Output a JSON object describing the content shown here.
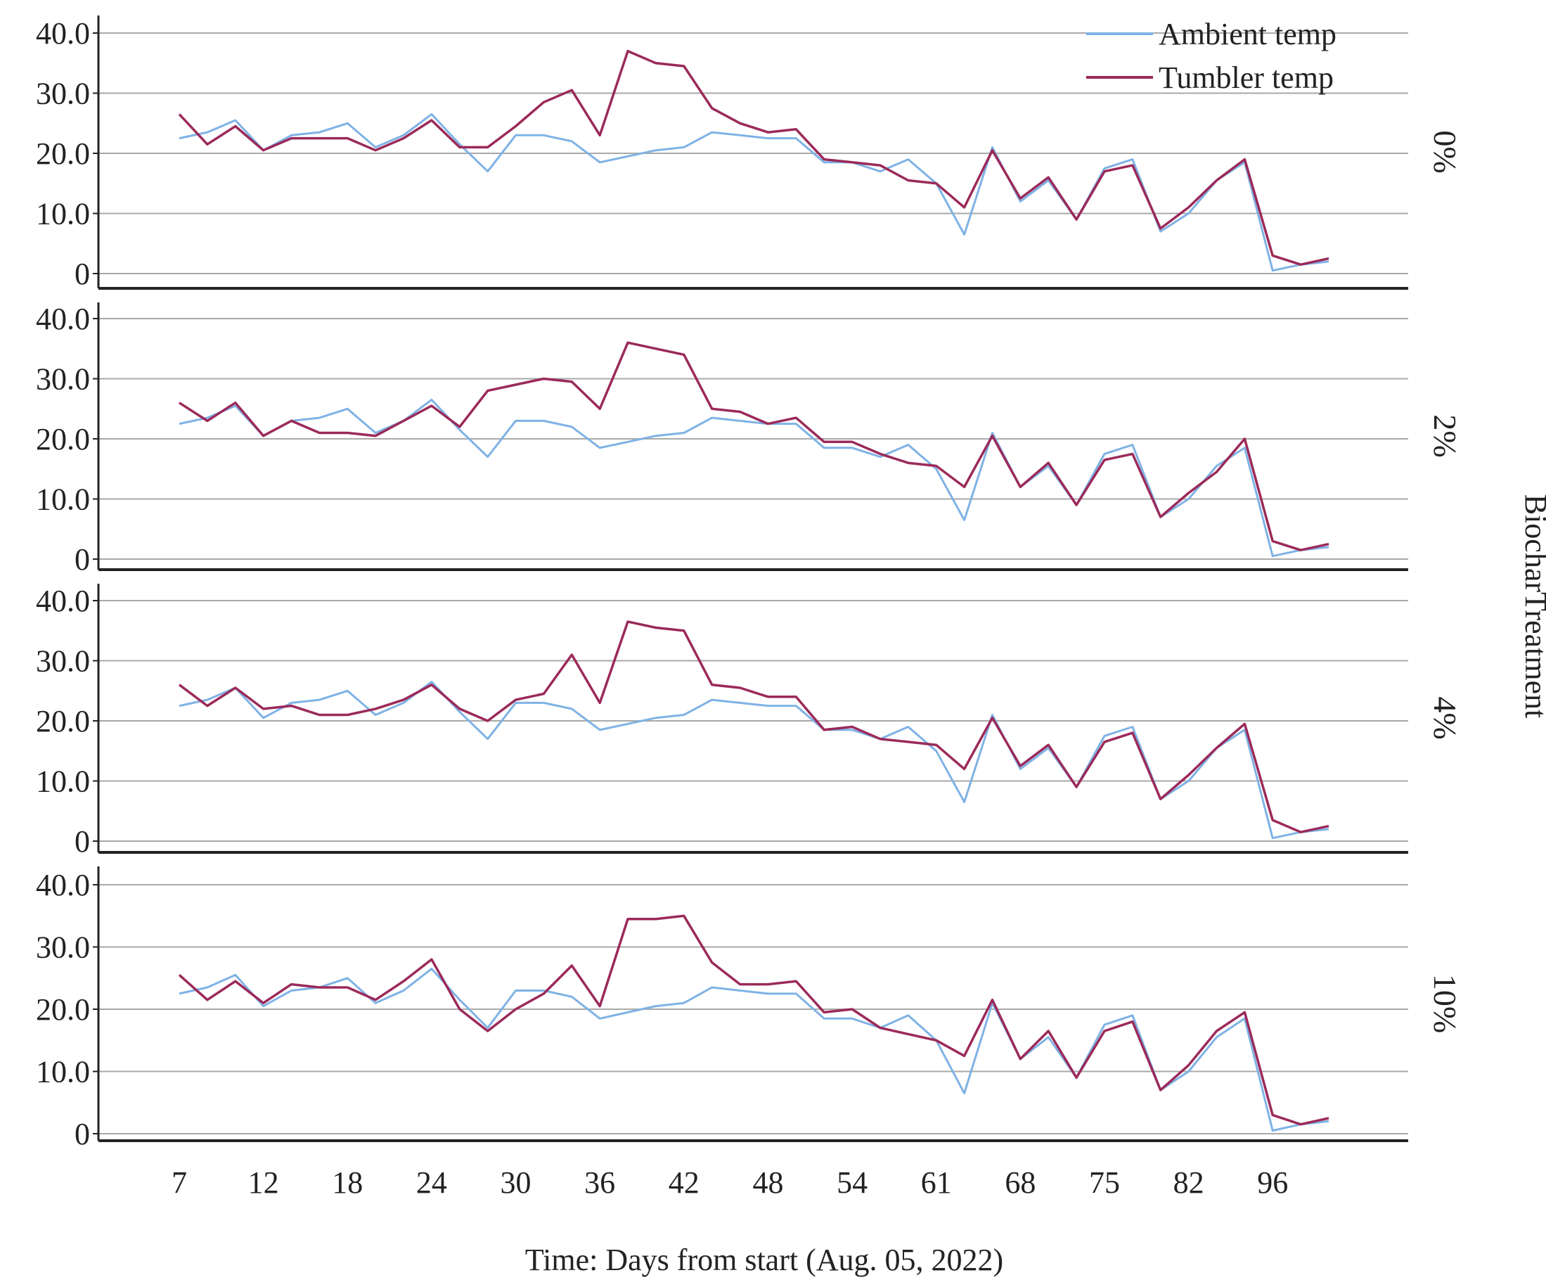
{
  "colors": {
    "ambient": "#7fb2e5",
    "tumbler": "#9b2a5a",
    "grid": "#a9a9a9",
    "axis": "#222222",
    "text": "#222222"
  },
  "chart_data": {
    "type": "line",
    "title": "",
    "xlabel": "Time: Days from start (Aug. 05, 2022)",
    "panel_axis_label": "BiocharTreatment",
    "ylim": [
      0,
      40
    ],
    "y_ticks": [
      0,
      10,
      20,
      30,
      40
    ],
    "y_tick_labels": [
      "0",
      "10.0",
      "20.0",
      "30.0",
      "40.0"
    ],
    "x_tick_labels": [
      "7",
      "12",
      "18",
      "24",
      "30",
      "36",
      "42",
      "48",
      "54",
      "61",
      "68",
      "75",
      "82",
      "96"
    ],
    "x_tick_indices": [
      0,
      3,
      6,
      9,
      12,
      15,
      18,
      21,
      24,
      27,
      30,
      33,
      36,
      39
    ],
    "n_points": 42,
    "legend": {
      "position": "top-right",
      "entries": [
        "Ambient temp",
        "Tumbler temp"
      ]
    },
    "ambient_series": [
      22.5,
      23.5,
      25.5,
      20.5,
      23,
      23.5,
      25,
      21,
      23,
      26.5,
      21.5,
      17,
      23,
      23,
      22,
      18.5,
      19.5,
      20.5,
      21,
      23.5,
      23,
      22.5,
      22.5,
      18.5,
      18.5,
      17,
      19,
      15,
      6.5,
      21,
      12,
      15.5,
      9,
      17.5,
      19,
      7,
      10,
      15.5,
      18.5,
      0.5,
      1.5,
      2
    ],
    "panels": [
      {
        "label": "0%",
        "series": [
          {
            "name": "Ambient temp",
            "values": [
              22.5,
              23.5,
              25.5,
              20.5,
              23,
              23.5,
              25,
              21,
              23,
              26.5,
              21.5,
              17,
              23,
              23,
              22,
              18.5,
              19.5,
              20.5,
              21,
              23.5,
              23,
              22.5,
              22.5,
              18.5,
              18.5,
              17,
              19,
              15,
              6.5,
              21,
              12,
              15.5,
              9,
              17.5,
              19,
              7,
              10,
              15.5,
              18.5,
              0.5,
              1.5,
              2
            ]
          },
          {
            "name": "Tumbler temp",
            "values": [
              26.5,
              21.5,
              24.5,
              20.5,
              22.5,
              22.5,
              22.5,
              20.5,
              22.5,
              25.5,
              21,
              21,
              24.5,
              28.5,
              30.5,
              23,
              37,
              35,
              34.5,
              27.5,
              25,
              23.5,
              24,
              19,
              18.5,
              18,
              15.5,
              15,
              11,
              20.5,
              12.5,
              16,
              9,
              17,
              18,
              7.5,
              11,
              15.5,
              19,
              3,
              1.5,
              2.5
            ]
          }
        ]
      },
      {
        "label": "2%",
        "series": [
          {
            "name": "Ambient temp",
            "values": [
              22.5,
              23.5,
              25.5,
              20.5,
              23,
              23.5,
              25,
              21,
              23,
              26.5,
              21.5,
              17,
              23,
              23,
              22,
              18.5,
              19.5,
              20.5,
              21,
              23.5,
              23,
              22.5,
              22.5,
              18.5,
              18.5,
              17,
              19,
              15,
              6.5,
              21,
              12,
              15.5,
              9,
              17.5,
              19,
              7,
              10,
              15.5,
              18.5,
              0.5,
              1.5,
              2
            ]
          },
          {
            "name": "Tumbler temp",
            "values": [
              26,
              23,
              26,
              20.5,
              23,
              21,
              21,
              20.5,
              23,
              25.5,
              22,
              28,
              29,
              30,
              29.5,
              25,
              36,
              35,
              34,
              25,
              24.5,
              22.5,
              23.5,
              19.5,
              19.5,
              17.5,
              16,
              15.5,
              12,
              20.5,
              12,
              16,
              9,
              16.5,
              17.5,
              7,
              11,
              14.5,
              20,
              3,
              1.5,
              2.5
            ]
          }
        ]
      },
      {
        "label": "4%",
        "series": [
          {
            "name": "Ambient temp",
            "values": [
              22.5,
              23.5,
              25.5,
              20.5,
              23,
              23.5,
              25,
              21,
              23,
              26.5,
              21.5,
              17,
              23,
              23,
              22,
              18.5,
              19.5,
              20.5,
              21,
              23.5,
              23,
              22.5,
              22.5,
              18.5,
              18.5,
              17,
              19,
              15,
              6.5,
              21,
              12,
              15.5,
              9,
              17.5,
              19,
              7,
              10,
              15.5,
              18.5,
              0.5,
              1.5,
              2
            ]
          },
          {
            "name": "Tumbler temp",
            "values": [
              26,
              22.5,
              25.5,
              22,
              22.5,
              21,
              21,
              22,
              23.5,
              26,
              22,
              20,
              23.5,
              24.5,
              31,
              23,
              36.5,
              35.5,
              35,
              26,
              25.5,
              24,
              24,
              18.5,
              19,
              17,
              16.5,
              16,
              12,
              20.5,
              12.5,
              16,
              9,
              16.5,
              18,
              7,
              11,
              15.5,
              19.5,
              3.5,
              1.5,
              2.5
            ]
          }
        ]
      },
      {
        "label": "10%",
        "series": [
          {
            "name": "Ambient temp",
            "values": [
              22.5,
              23.5,
              25.5,
              20.5,
              23,
              23.5,
              25,
              21,
              23,
              26.5,
              21.5,
              17,
              23,
              23,
              22,
              18.5,
              19.5,
              20.5,
              21,
              23.5,
              23,
              22.5,
              22.5,
              18.5,
              18.5,
              17,
              19,
              15,
              6.5,
              21,
              12,
              15.5,
              9,
              17.5,
              19,
              7,
              10,
              15.5,
              18.5,
              0.5,
              1.5,
              2
            ]
          },
          {
            "name": "Tumbler temp",
            "values": [
              25.5,
              21.5,
              24.5,
              21,
              24,
              23.5,
              23.5,
              21.5,
              24.5,
              28,
              20,
              16.5,
              20,
              22.5,
              27,
              20.5,
              34.5,
              34.5,
              35,
              27.5,
              24,
              24,
              24.5,
              19.5,
              20,
              17,
              16,
              15,
              12.5,
              21.5,
              12,
              16.5,
              9,
              16.5,
              18,
              7,
              11,
              16.5,
              19.5,
              3,
              1.5,
              2.5
            ]
          }
        ]
      }
    ]
  }
}
